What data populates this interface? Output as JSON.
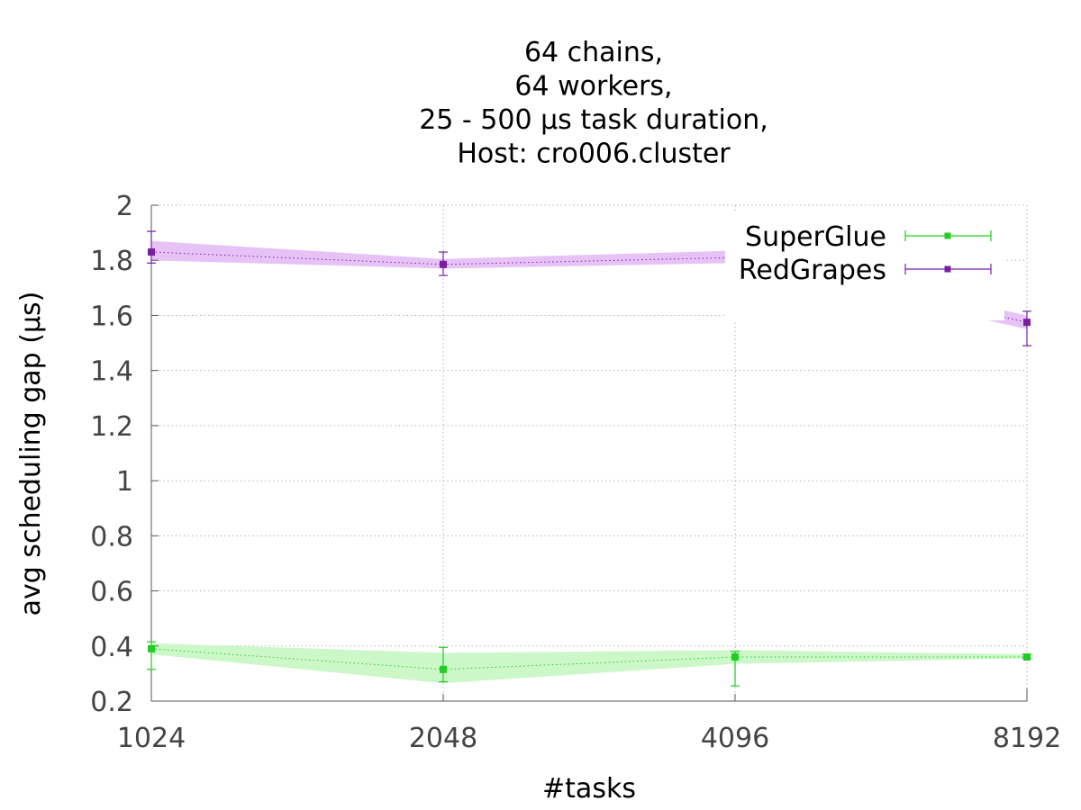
{
  "chart_data": {
    "type": "line",
    "title_lines": [
      "64 chains,",
      "64 workers,",
      "25 - 500 µs task duration,",
      "Host: cro006.cluster"
    ],
    "xlabel": "#tasks",
    "ylabel": "avg scheduling gap (µs)",
    "categories": [
      "1024",
      "2048",
      "4096",
      "8192"
    ],
    "ylim": [
      0.2,
      2.0
    ],
    "yticks": [
      0.2,
      0.4,
      0.6,
      0.8,
      1.0,
      1.2,
      1.4,
      1.6,
      1.8,
      2.0
    ],
    "ytick_labels": [
      "0.2",
      "0.4",
      "0.6",
      "0.8",
      "1",
      "1.2",
      "1.4",
      "1.6",
      "1.8",
      "2"
    ],
    "grid": true,
    "legend_position": "top-right",
    "series": [
      {
        "name": "SuperGlue",
        "color": "#22cc22",
        "band_color": "#ccf7c8",
        "values": [
          0.39,
          0.315,
          0.36,
          0.36
        ],
        "err_low": [
          0.315,
          0.27,
          0.255,
          0.355
        ],
        "err_high": [
          0.415,
          0.395,
          0.38,
          0.37
        ],
        "band_low": [
          0.37,
          0.265,
          0.335,
          0.355
        ],
        "band_high": [
          0.41,
          0.375,
          0.385,
          0.37
        ]
      },
      {
        "name": "RedGrapes",
        "color": "#7a1fa2",
        "band_color": "#e7c2f7",
        "values": [
          1.83,
          1.785,
          1.81,
          1.575
        ],
        "err_low": [
          1.79,
          1.745,
          1.775,
          1.49
        ],
        "err_high": [
          1.905,
          1.83,
          1.85,
          1.615
        ],
        "band_low": [
          1.8,
          1.77,
          1.79,
          1.55
        ],
        "band_high": [
          1.87,
          1.805,
          1.835,
          1.6
        ]
      }
    ]
  }
}
